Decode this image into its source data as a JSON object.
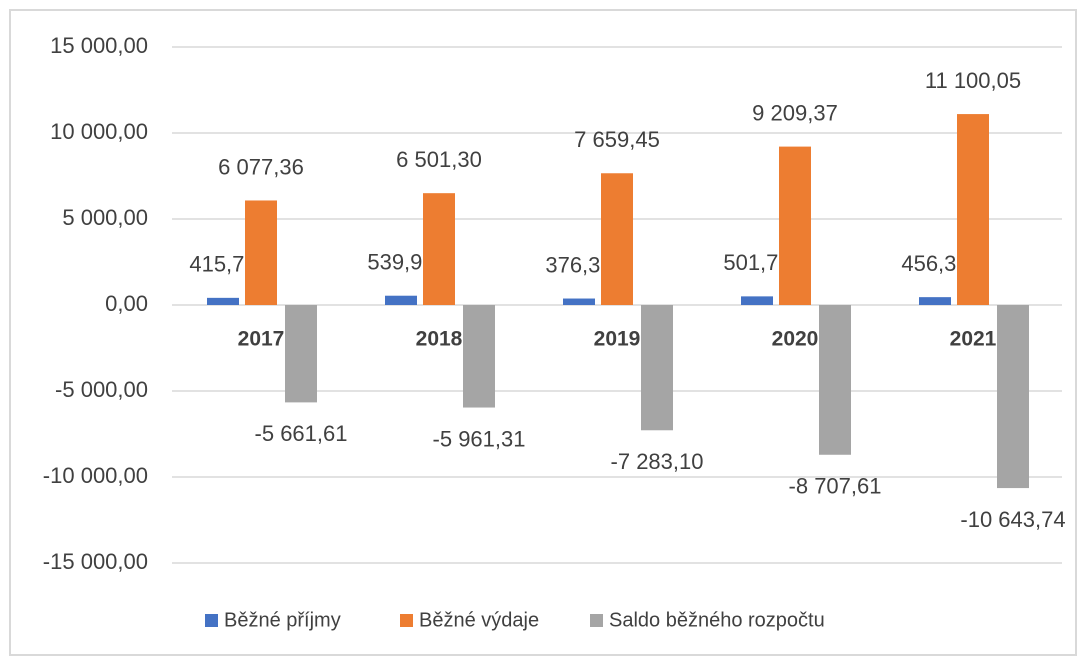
{
  "chart_data": {
    "type": "bar",
    "categories": [
      "2017",
      "2018",
      "2019",
      "2020",
      "2021"
    ],
    "series": [
      {
        "name": "Běžné příjmy",
        "color": "#4472c4",
        "values": [
          415.75,
          539.99,
          376.35,
          501.76,
          456.31
        ],
        "value_labels": [
          "415,75",
          "539,99",
          "376,35",
          "501,76",
          "456,31"
        ]
      },
      {
        "name": "Běžné výdaje",
        "color": "#ed7d31",
        "values": [
          6077.36,
          6501.3,
          7659.45,
          9209.37,
          11100.05
        ],
        "value_labels": [
          "6 077,36",
          "6 501,30",
          "7 659,45",
          "9 209,37",
          "11 100,05"
        ]
      },
      {
        "name": "Saldo běžného rozpočtu",
        "color": "#a5a5a5",
        "values": [
          -5661.61,
          -5961.31,
          -7283.1,
          -8707.61,
          -10643.74
        ],
        "value_labels": [
          "-5 661,61",
          "-5 961,31",
          "-7 283,10",
          "-8 707,61",
          "-10 643,74"
        ]
      }
    ],
    "ylim": [
      -15000,
      15000
    ],
    "yticks": [
      {
        "value": -15000,
        "label": "-15 000,00"
      },
      {
        "value": -10000,
        "label": "-10 000,00"
      },
      {
        "value": -5000,
        "label": "-5 000,00"
      },
      {
        "value": 0,
        "label": "0,00"
      },
      {
        "value": 5000,
        "label": "5 000,00"
      },
      {
        "value": 10000,
        "label": "10 000,00"
      },
      {
        "value": 15000,
        "label": "15 000,00"
      }
    ],
    "grid": true
  }
}
